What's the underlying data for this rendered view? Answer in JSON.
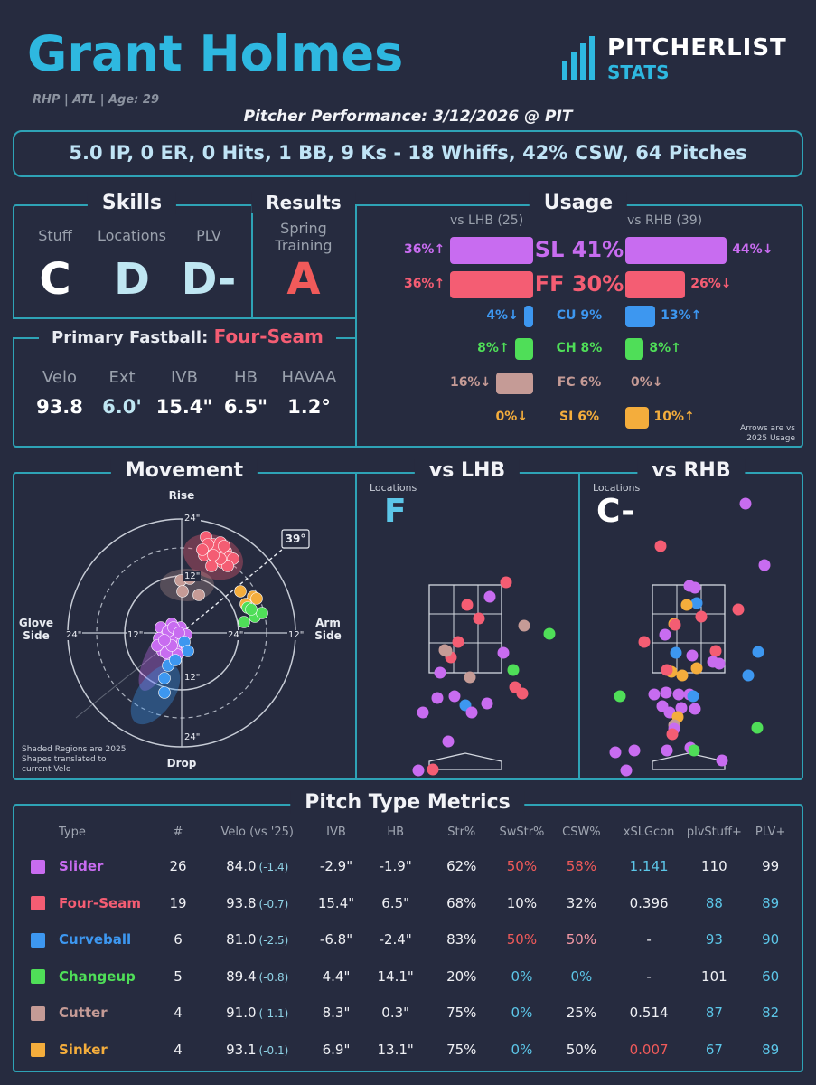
{
  "header": {
    "name": "Grant Holmes",
    "meta": "RHP | ATL | Age: 29",
    "logo_line1": "PITCHERLIST",
    "logo_line2": "STATS",
    "performance_title": "Pitcher Performance: 3/12/2026 @ PIT",
    "summary": "5.0 IP, 0 ER, 0 Hits, 1 BB, 9 Ks - 18 Whiffs, 42% CSW, 64 Pitches"
  },
  "skills": {
    "title": "Skills",
    "items": [
      {
        "label": "Stuff",
        "grade": "C",
        "color": "#ffffff"
      },
      {
        "label": "Locations",
        "grade": "D",
        "color": "#bfe6f2"
      },
      {
        "label": "PLV",
        "grade": "D-",
        "color": "#bfe6f2"
      }
    ]
  },
  "results": {
    "title": "Results",
    "label": "Spring Training",
    "grade": "A",
    "color": "#f15a5a"
  },
  "primary_fastball": {
    "title": "Primary Fastball:",
    "pitch": "Four-Seam",
    "pitch_color": "#f45d73",
    "labels": [
      "Velo",
      "Ext",
      "IVB",
      "HB",
      "HAVAA"
    ],
    "values": [
      "93.8",
      "6.0'",
      "15.4\"",
      "6.5\"",
      "1.2°"
    ],
    "value_colors": [
      "#ffffff",
      "#bfe6f2",
      "#ffffff",
      "#ffffff",
      "#ffffff"
    ]
  },
  "usage": {
    "title": "Usage",
    "lhb_header": "vs LHB (25)",
    "rhb_header": "vs RHB (39)",
    "note": "Arrows are vs 2025 Usage",
    "rows": [
      {
        "label": "SL 41%",
        "color": "#c86cf0",
        "lhb": 36,
        "lhb_text": "36%↑",
        "rhb": 44,
        "rhb_text": "44%↓"
      },
      {
        "label": "FF 30%",
        "color": "#f45d73",
        "lhb": 36,
        "lhb_text": "36%↑",
        "rhb": 26,
        "rhb_text": "26%↓"
      },
      {
        "label": "CU 9%",
        "color": "#3d97f0",
        "lhb": 4,
        "lhb_text": "4%↓",
        "rhb": 13,
        "rhb_text": "13%↑"
      },
      {
        "label": "CH 8%",
        "color": "#4fde58",
        "lhb": 8,
        "lhb_text": "8%↑",
        "rhb": 8,
        "rhb_text": "8%↑"
      },
      {
        "label": "FC 6%",
        "color": "#c59b96",
        "lhb": 16,
        "lhb_text": "16%↓",
        "rhb": 0,
        "rhb_text": "0%↓"
      },
      {
        "label": "SI 6%",
        "color": "#f4ad3c",
        "lhb": 0,
        "lhb_text": "0%↓",
        "rhb": 10,
        "rhb_text": "10%↑"
      }
    ]
  },
  "movement": {
    "title": "Movement",
    "rise": "Rise",
    "drop": "Drop",
    "glove": "Glove Side",
    "arm": "Arm Side",
    "ring_labels": [
      "24\"",
      "12\"",
      "12\"",
      "24\"",
      "24\"",
      "12\"",
      "12\"",
      "24\""
    ],
    "arm_angle": "39°",
    "note": "Shaded Regions are 2025 Shapes translated to current Velo"
  },
  "vs_lhb": {
    "title": "vs LHB",
    "loc_label": "Locations",
    "grade": "F",
    "grade_color": "#5cc6e8"
  },
  "vs_rhb": {
    "title": "vs RHB",
    "loc_label": "Locations",
    "grade": "C-",
    "grade_color": "#ffffff"
  },
  "metrics": {
    "title": "Pitch Type Metrics",
    "columns": [
      "Type",
      "#",
      "Velo (vs '25)",
      "IVB",
      "HB",
      "Str%",
      "SwStr%",
      "CSW%",
      "xSLGcon",
      "plvStuff+",
      "PLV+"
    ],
    "rows": [
      {
        "type": "Slider",
        "color": "#c86cf0",
        "n": "26",
        "velo": "84.0",
        "velo_diff": "(-1.4)",
        "ivb": "-2.9\"",
        "hb": "-1.9\"",
        "str": "62%",
        "swstr": "50%",
        "csw": "58%",
        "xslg": "1.141",
        "stuff": "110",
        "plv": "99"
      },
      {
        "type": "Four-Seam",
        "color": "#f45d73",
        "n": "19",
        "velo": "93.8",
        "velo_diff": "(-0.7)",
        "ivb": "15.4\"",
        "hb": "6.5\"",
        "str": "68%",
        "swstr": "10%",
        "csw": "32%",
        "xslg": "0.396",
        "stuff": "88",
        "plv": "89"
      },
      {
        "type": "Curveball",
        "color": "#3d97f0",
        "n": "6",
        "velo": "81.0",
        "velo_diff": "(-2.5)",
        "ivb": "-6.8\"",
        "hb": "-2.4\"",
        "str": "83%",
        "swstr": "50%",
        "csw": "50%",
        "xslg": "-",
        "stuff": "93",
        "plv": "90"
      },
      {
        "type": "Changeup",
        "color": "#4fde58",
        "n": "5",
        "velo": "89.4",
        "velo_diff": "(-0.8)",
        "ivb": "4.4\"",
        "hb": "14.1\"",
        "str": "20%",
        "swstr": "0%",
        "csw": "0%",
        "xslg": "-",
        "stuff": "101",
        "plv": "60"
      },
      {
        "type": "Cutter",
        "color": "#c59b96",
        "n": "4",
        "velo": "91.0",
        "velo_diff": "(-1.1)",
        "ivb": "8.3\"",
        "hb": "0.3\"",
        "str": "75%",
        "swstr": "0%",
        "csw": "25%",
        "xslg": "0.514",
        "stuff": "87",
        "plv": "82"
      },
      {
        "type": "Sinker",
        "color": "#f4ad3c",
        "n": "4",
        "velo": "93.1",
        "velo_diff": "(-0.1)",
        "ivb": "6.9\"",
        "hb": "13.1\"",
        "str": "75%",
        "swstr": "0%",
        "csw": "50%",
        "xslg": "0.007",
        "stuff": "67",
        "plv": "89"
      }
    ]
  }
}
